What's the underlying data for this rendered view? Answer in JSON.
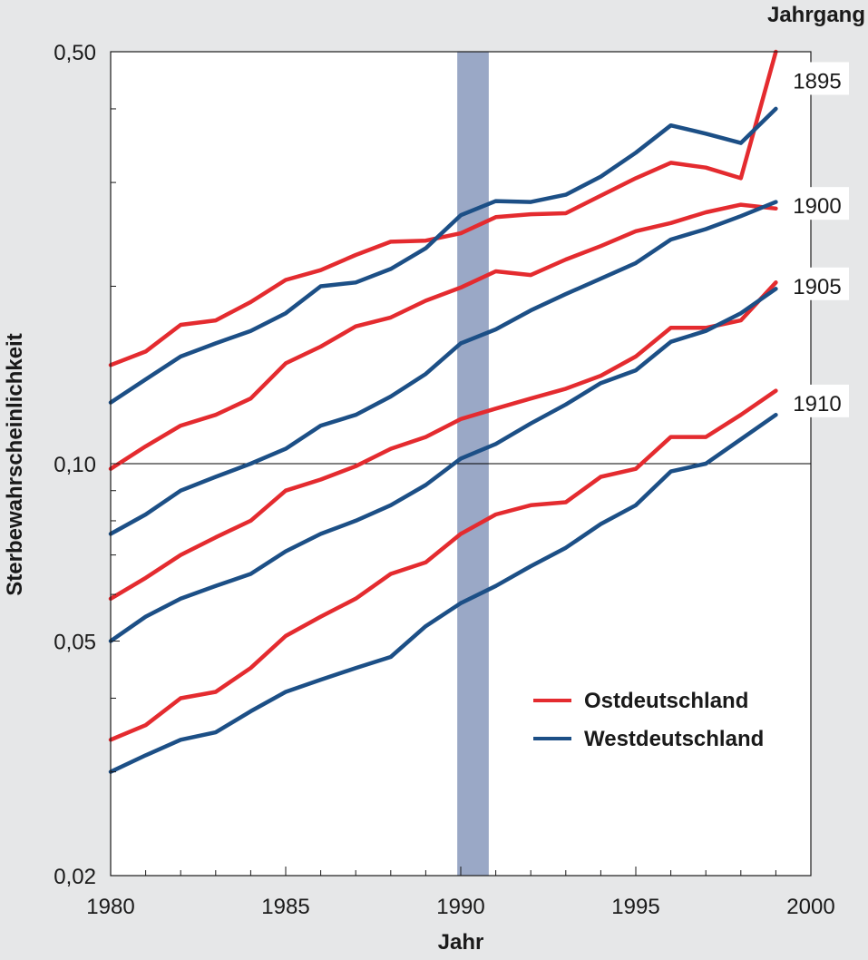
{
  "chart_data": {
    "type": "line",
    "xlabel": "Jahr",
    "ylabel": "Sterbewahrscheinlichkeit",
    "x_ticks": [
      "1980",
      "1985",
      "1990",
      "1995",
      "2000"
    ],
    "y_ticks": [
      {
        "value": 0.5,
        "label": "0,50"
      },
      {
        "value": 0.1,
        "label": "0,10"
      },
      {
        "value": 0.05,
        "label": "0,05"
      },
      {
        "value": 0.02,
        "label": "0,02"
      }
    ],
    "y_minor_ticks": [
      0.03,
      0.04,
      0.06,
      0.07,
      0.08,
      0.09,
      0.2,
      0.3,
      0.4
    ],
    "y_scale": "log",
    "xlim": [
      1980,
      2000
    ],
    "ylim": [
      0.02,
      0.5
    ],
    "reference_line": 0.1,
    "highlight_band": [
      1989.9,
      1990.8
    ],
    "cohort_header": "Jahrgang",
    "cohorts": [
      "1895",
      "1900",
      "1905",
      "1910"
    ],
    "colors": {
      "ost": "#e42b2f",
      "west": "#1c4f86",
      "band": "#9aa8c6",
      "background": "#e6e7e8",
      "plot": "#ffffff"
    },
    "legend": [
      {
        "label": "Ostdeutschland",
        "color": "#e42b2f"
      },
      {
        "label": "Westdeutschland",
        "color": "#1c4f86"
      }
    ],
    "x": [
      1980,
      1981,
      1982,
      1983,
      1984,
      1985,
      1986,
      1987,
      1988,
      1989,
      1990,
      1991,
      1992,
      1993,
      1994,
      1995,
      1996,
      1997,
      1998,
      1999
    ],
    "series": [
      {
        "region": "ost",
        "cohort": "1895",
        "values": [
          0.147,
          0.155,
          0.172,
          0.175,
          0.188,
          0.205,
          0.213,
          0.226,
          0.238,
          0.239,
          0.246,
          0.262,
          0.265,
          0.266,
          0.285,
          0.305,
          0.324,
          0.318,
          0.305,
          0.5
        ]
      },
      {
        "region": "west",
        "cohort": "1895",
        "values": [
          0.127,
          0.139,
          0.152,
          0.16,
          0.168,
          0.18,
          0.2,
          0.203,
          0.214,
          0.232,
          0.264,
          0.279,
          0.278,
          0.286,
          0.307,
          0.337,
          0.375,
          0.363,
          0.35,
          0.4
        ]
      },
      {
        "region": "ost",
        "cohort": "1900",
        "values": [
          0.098,
          0.107,
          0.116,
          0.121,
          0.129,
          0.148,
          0.158,
          0.171,
          0.177,
          0.189,
          0.199,
          0.212,
          0.209,
          0.222,
          0.234,
          0.248,
          0.256,
          0.267,
          0.275,
          0.271
        ]
      },
      {
        "region": "west",
        "cohort": "1900",
        "values": [
          0.076,
          0.082,
          0.09,
          0.095,
          0.1,
          0.106,
          0.116,
          0.121,
          0.13,
          0.142,
          0.16,
          0.169,
          0.182,
          0.194,
          0.206,
          0.219,
          0.24,
          0.25,
          0.263,
          0.278
        ]
      },
      {
        "region": "ost",
        "cohort": "1905",
        "values": [
          0.059,
          0.064,
          0.07,
          0.075,
          0.08,
          0.09,
          0.094,
          0.099,
          0.106,
          0.111,
          0.119,
          0.124,
          0.129,
          0.134,
          0.141,
          0.152,
          0.17,
          0.17,
          0.175,
          0.203
        ]
      },
      {
        "region": "west",
        "cohort": "1905",
        "values": [
          0.05,
          0.055,
          0.059,
          0.062,
          0.065,
          0.071,
          0.076,
          0.08,
          0.085,
          0.092,
          0.102,
          0.108,
          0.117,
          0.126,
          0.137,
          0.144,
          0.161,
          0.168,
          0.18,
          0.198
        ]
      },
      {
        "region": "ost",
        "cohort": "1910",
        "values": [
          0.034,
          0.036,
          0.04,
          0.041,
          0.045,
          0.051,
          0.055,
          0.059,
          0.065,
          0.068,
          0.076,
          0.082,
          0.085,
          0.086,
          0.095,
          0.098,
          0.111,
          0.111,
          0.121,
          0.133
        ]
      },
      {
        "region": "west",
        "cohort": "1910",
        "values": [
          0.03,
          0.032,
          0.034,
          0.035,
          0.038,
          0.041,
          0.043,
          0.045,
          0.047,
          0.053,
          0.058,
          0.062,
          0.067,
          0.072,
          0.079,
          0.085,
          0.097,
          0.1,
          0.11,
          0.121
        ]
      }
    ]
  }
}
